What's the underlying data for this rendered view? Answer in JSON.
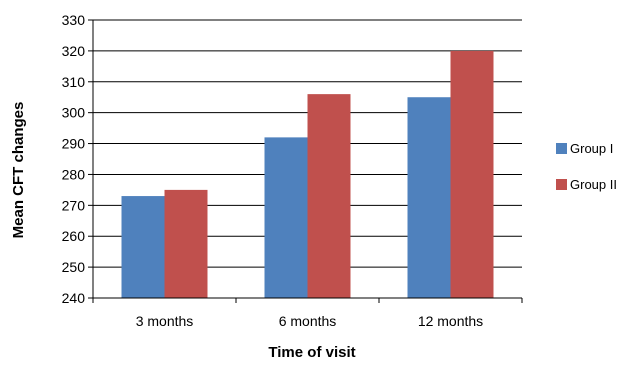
{
  "chart_data": {
    "type": "bar",
    "title": "",
    "xlabel": "Time of visit",
    "ylabel": "Mean CFT changes",
    "categories": [
      "3 months",
      "6 months",
      "12 months"
    ],
    "series": [
      {
        "name": "Group I",
        "values": [
          273,
          292,
          305
        ],
        "color": "#4f81bd"
      },
      {
        "name": "Group II",
        "values": [
          275,
          306,
          320
        ],
        "color": "#c0504d"
      }
    ],
    "ylim": [
      240,
      330
    ],
    "yticks": [
      240,
      250,
      260,
      270,
      280,
      290,
      300,
      310,
      320,
      330
    ],
    "grid": true,
    "legend_position": "right"
  }
}
